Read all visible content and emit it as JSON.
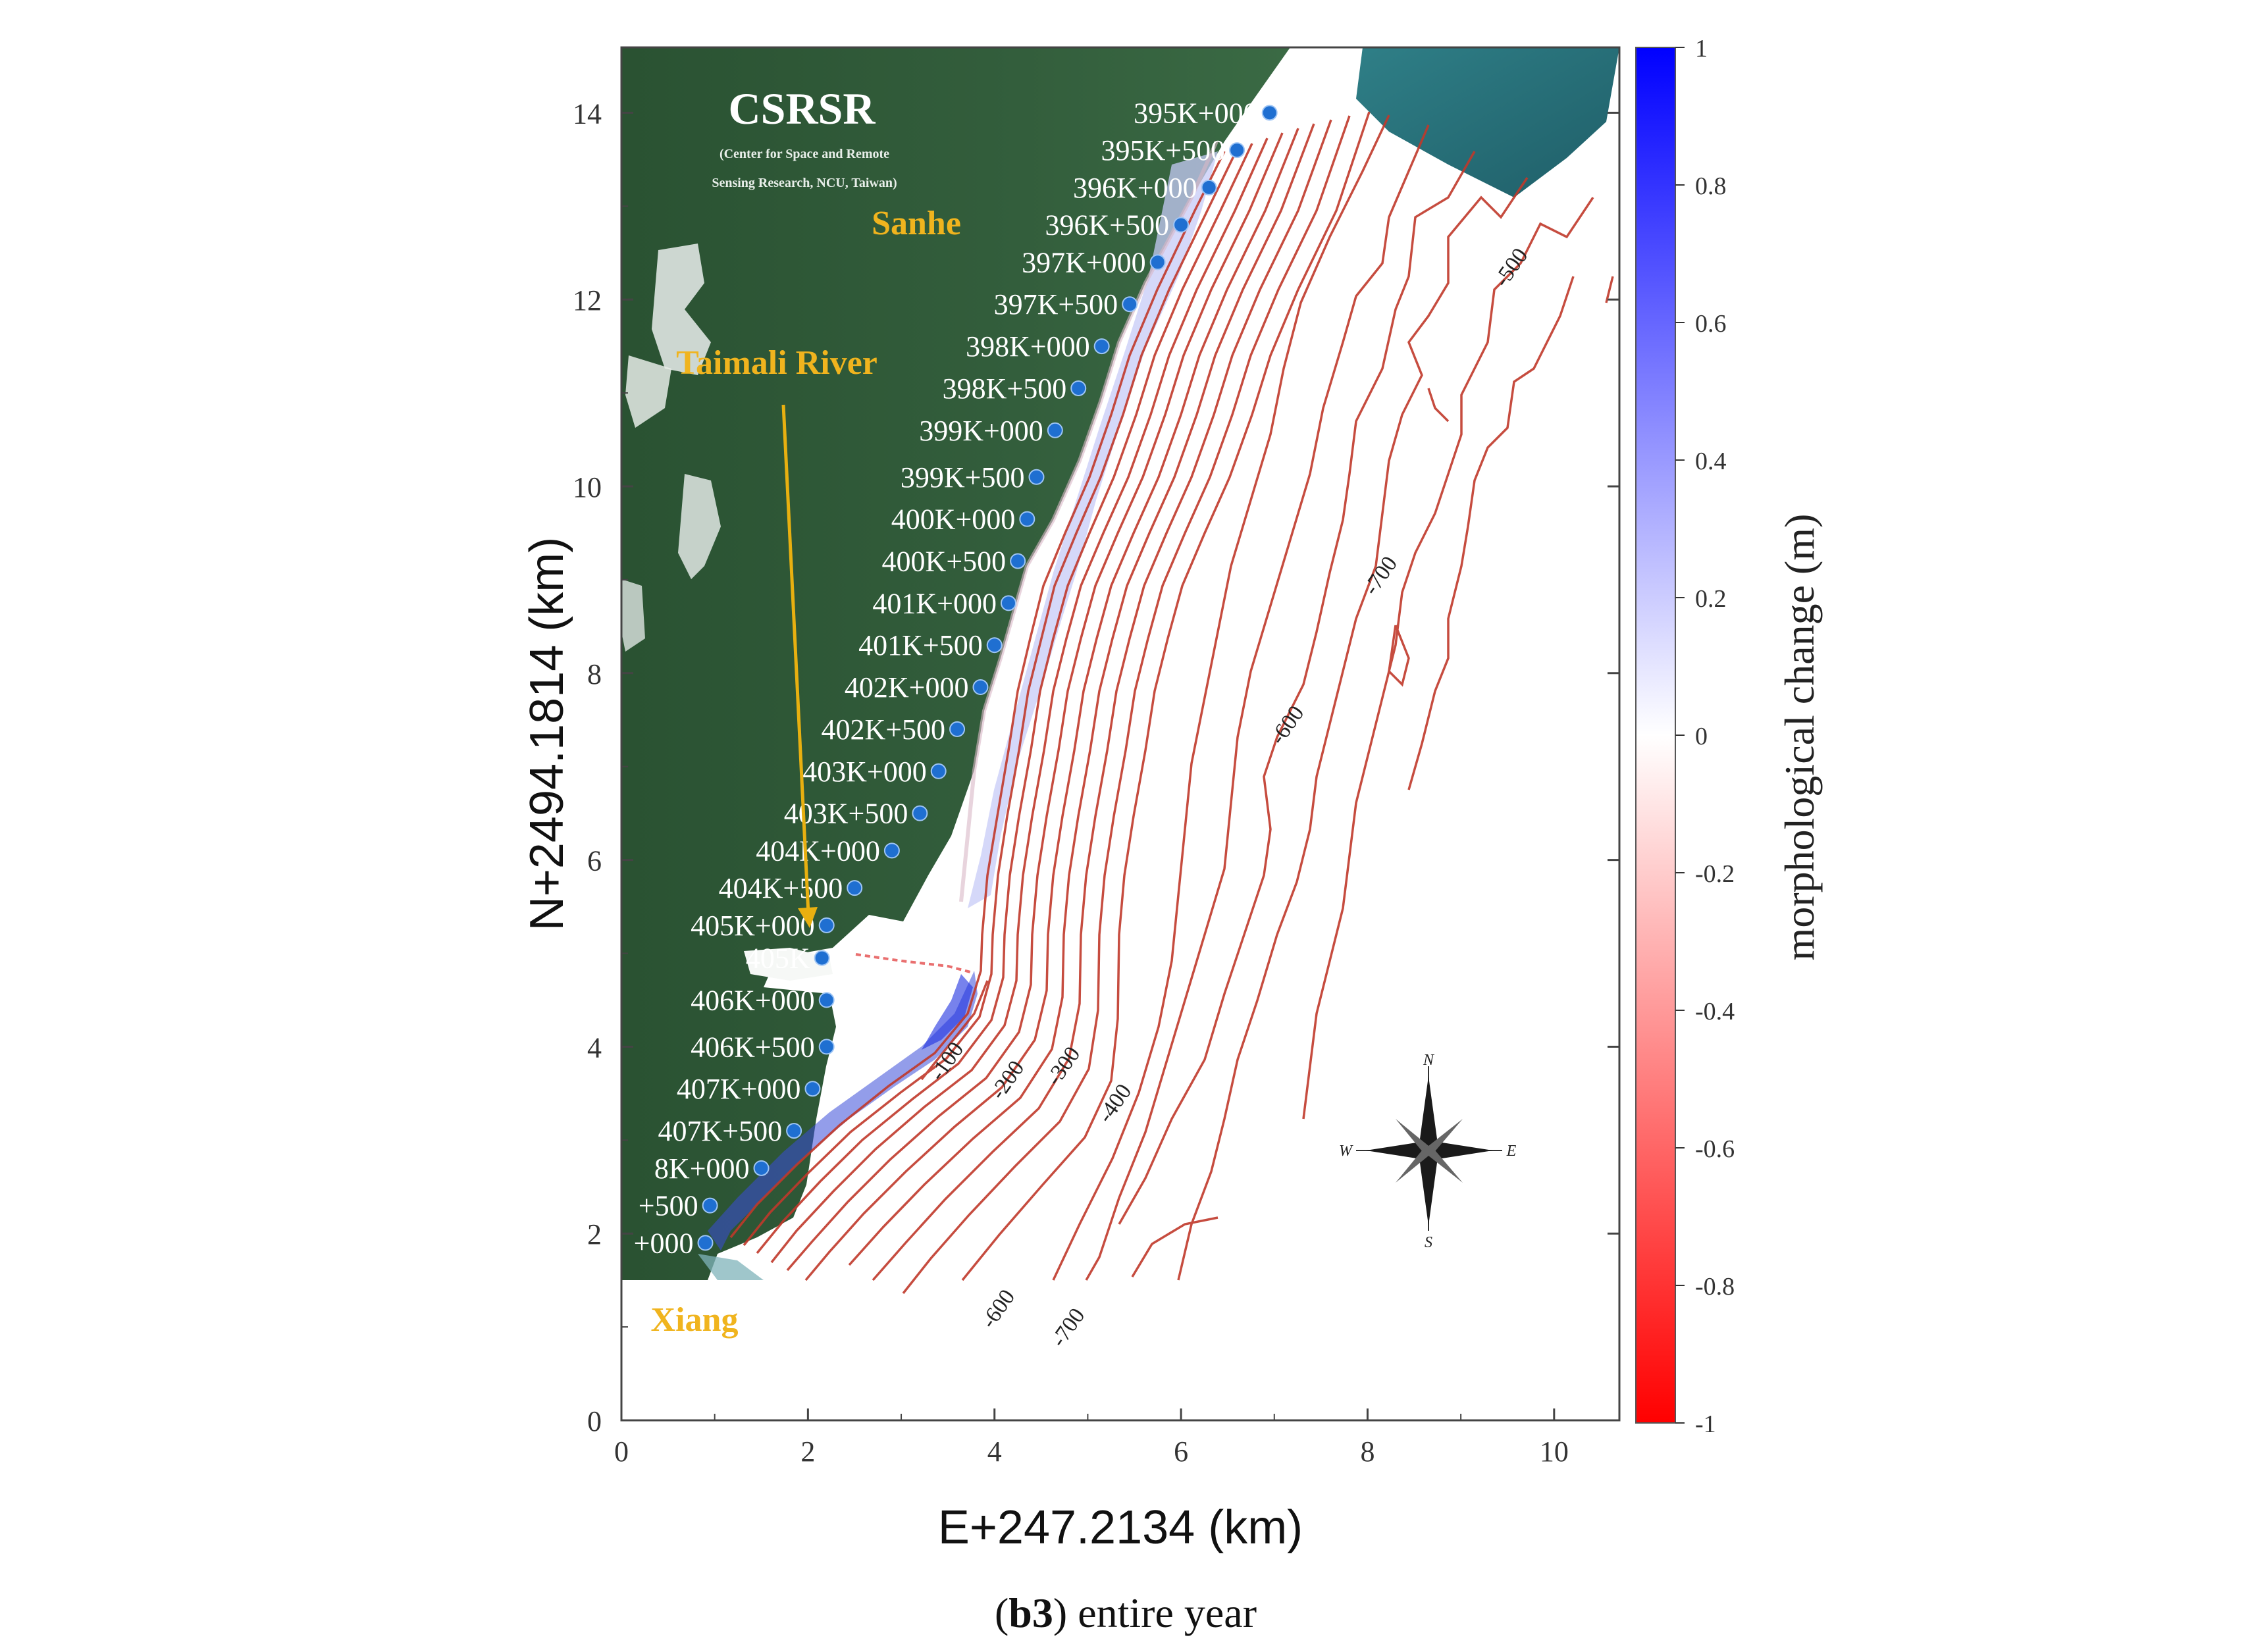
{
  "map": {
    "source": {
      "title": "CSRSR",
      "subtitle_line1": "(Center for Space and Remote",
      "subtitle_line2": "Sensing Research, NCU, Taiwan)"
    },
    "place_labels": [
      "Sanhe",
      "Taimali River",
      "Xiang"
    ],
    "stations": [
      {
        "label": "395K+000",
        "y": 14.0
      },
      {
        "label": "395K+500",
        "y": 13.6
      },
      {
        "label": "396K+000",
        "y": 13.2
      },
      {
        "label": "396K+500",
        "y": 12.8
      },
      {
        "label": "397K+000",
        "y": 12.4
      },
      {
        "label": "397K+500",
        "y": 11.95
      },
      {
        "label": "398K+000",
        "y": 11.5
      },
      {
        "label": "398K+500",
        "y": 11.05
      },
      {
        "label": "399K+000",
        "y": 10.6
      },
      {
        "label": "399K+500",
        "y": 10.1
      },
      {
        "label": "400K+000",
        "y": 9.65
      },
      {
        "label": "400K+500",
        "y": 9.2
      },
      {
        "label": "401K+000",
        "y": 8.75
      },
      {
        "label": "401K+500",
        "y": 8.3
      },
      {
        "label": "402K+000",
        "y": 7.85
      },
      {
        "label": "402K+500",
        "y": 7.4
      },
      {
        "label": "403K+000",
        "y": 6.95
      },
      {
        "label": "403K+500",
        "y": 6.5
      },
      {
        "label": "404K+000",
        "y": 6.1
      },
      {
        "label": "404K+500",
        "y": 5.7
      },
      {
        "label": "405K+000",
        "y": 5.3
      },
      {
        "label": "405K",
        "y": 4.95
      },
      {
        "label": "406K+000",
        "y": 4.5
      },
      {
        "label": "406K+500",
        "y": 4.0
      },
      {
        "label": "407K+000",
        "y": 3.55
      },
      {
        "label": "407K+500",
        "y": 3.1
      },
      {
        "label": "8K+000",
        "y": 2.7
      },
      {
        "label": "+500",
        "y": 2.3
      },
      {
        "label": "+000",
        "y": 1.9
      }
    ],
    "contour_labels": [
      {
        "text": "-500",
        "x": 9.6,
        "y": 12.3
      },
      {
        "text": "-700",
        "x": 8.2,
        "y": 9.0
      },
      {
        "text": "-600",
        "x": 7.2,
        "y": 7.4
      },
      {
        "text": "-200",
        "x": 4.2,
        "y": 3.6
      },
      {
        "text": "-300",
        "x": 4.8,
        "y": 3.75
      },
      {
        "text": "-400",
        "x": 5.35,
        "y": 3.35
      },
      {
        "text": "-600",
        "x": 4.1,
        "y": 1.15
      },
      {
        "text": "-700",
        "x": 4.85,
        "y": 0.95
      },
      {
        "text": "-100",
        "x": 3.55,
        "y": 3.8
      }
    ],
    "compass": {
      "n": "N",
      "s": "S",
      "e": "E",
      "w": "W"
    },
    "colors": {
      "land": "#2d5a3a",
      "sea": "#ffffff",
      "contour": "#c0392b",
      "station_marker": "#1f6fd1",
      "place_label": "#f0b41e",
      "river_arrow": "#e8b010",
      "erosion": "#ff0000",
      "deposition": "#0000ff"
    }
  },
  "axes": {
    "x_title": "E+247.2134 (km)",
    "y_title": "N+2494.1814 (km)",
    "x_ticks": [
      "0",
      "2",
      "4",
      "6",
      "8",
      "10"
    ],
    "y_ticks": [
      "0",
      "2",
      "4",
      "6",
      "8",
      "10",
      "12",
      "14"
    ],
    "x_range": [
      0,
      10.7
    ],
    "y_range": [
      0,
      14.7
    ]
  },
  "colorbar": {
    "title": "morphological change (m)",
    "range": [
      -1,
      1
    ],
    "ticks": [
      "1",
      "0.8",
      "0.6",
      "0.4",
      "0.2",
      "0",
      "-0.2",
      "-0.4",
      "-0.6",
      "-0.8",
      "-1"
    ]
  },
  "caption": {
    "label": "b3",
    "text": ") entire year",
    "open": "("
  }
}
